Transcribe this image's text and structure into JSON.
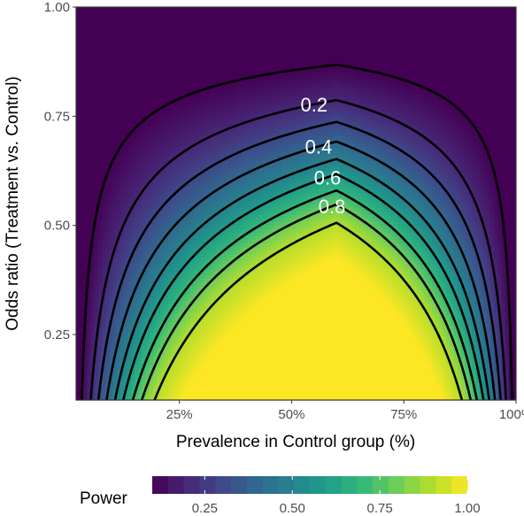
{
  "chart_data": {
    "type": "heatmap",
    "subtype": "filled contour with contour lines",
    "xlabel": "Prevalence in Control group (%)",
    "ylabel": "Odds ratio (Treatment vs. Control)",
    "xlim": [
      0.02,
      1.0
    ],
    "ylim": [
      0.1,
      1.0
    ],
    "x_ticks": [
      {
        "value": 0.25,
        "label": "25%"
      },
      {
        "value": 0.5,
        "label": "50%"
      },
      {
        "value": 0.75,
        "label": "75%"
      },
      {
        "value": 1.0,
        "label": "100%"
      }
    ],
    "y_ticks": [
      {
        "value": 0.25,
        "label": "0.25"
      },
      {
        "value": 0.5,
        "label": "0.50"
      },
      {
        "value": 0.75,
        "label": "0.75"
      },
      {
        "value": 1.0,
        "label": "1.00"
      }
    ],
    "fill_variable": "Power",
    "colorscale": "viridis",
    "colorscale_colors": [
      "#440154",
      "#482878",
      "#3e4989",
      "#31688e",
      "#26828e",
      "#1f9e89",
      "#35b779",
      "#6ece58",
      "#b5de2b",
      "#fde725"
    ],
    "contour_levels": [
      0.1,
      0.2,
      0.3,
      0.4,
      0.5,
      0.6,
      0.7,
      0.8,
      0.9
    ],
    "contour_labels": [
      {
        "text": "0.2",
        "level": 0.2,
        "x": 0.55
      },
      {
        "text": "0.4",
        "level": 0.4,
        "x": 0.56
      },
      {
        "text": "0.6",
        "level": 0.6,
        "x": 0.58
      },
      {
        "text": "0.8",
        "level": 0.8,
        "x": 0.59
      }
    ],
    "contour_min_odds_ratio_at_peak": [
      {
        "level": 0.1,
        "odds_ratio": 0.868
      },
      {
        "level": 0.2,
        "odds_ratio": 0.787
      },
      {
        "level": 0.3,
        "odds_ratio": 0.737
      },
      {
        "level": 0.4,
        "odds_ratio": 0.692
      },
      {
        "level": 0.5,
        "odds_ratio": 0.652
      },
      {
        "level": 0.6,
        "odds_ratio": 0.617
      },
      {
        "level": 0.7,
        "odds_ratio": 0.58
      },
      {
        "level": 0.8,
        "odds_ratio": 0.548
      },
      {
        "level": 0.9,
        "odds_ratio": 0.506
      }
    ],
    "peak_prevalence": 0.6,
    "grid": true,
    "legend": {
      "title": "Power",
      "position": "bottom",
      "type": "colorbar",
      "range": [
        0.1,
        1.0
      ],
      "ticks": [
        {
          "value": 0.25,
          "label": "0.25"
        },
        {
          "value": 0.5,
          "label": "0.50"
        },
        {
          "value": 0.75,
          "label": "0.75"
        },
        {
          "value": 1.0,
          "label": "1.00"
        }
      ]
    }
  }
}
